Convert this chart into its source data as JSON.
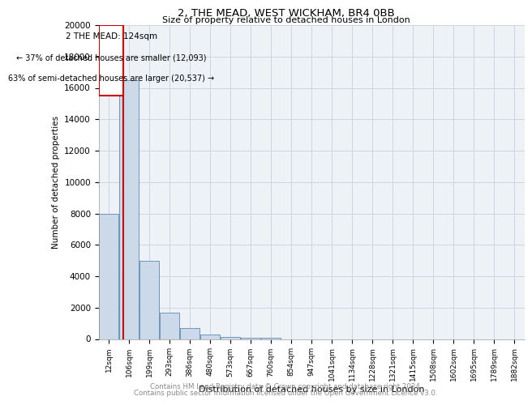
{
  "title1": "2, THE MEAD, WEST WICKHAM, BR4 0BB",
  "title2": "Size of property relative to detached houses in London",
  "xlabel": "Distribution of detached houses by size in London",
  "ylabel": "Number of detached properties",
  "categories": [
    "12sqm",
    "106sqm",
    "199sqm",
    "293sqm",
    "386sqm",
    "480sqm",
    "573sqm",
    "667sqm",
    "760sqm",
    "854sqm",
    "947sqm",
    "1041sqm",
    "1134sqm",
    "1228sqm",
    "1321sqm",
    "1415sqm",
    "1508sqm",
    "1602sqm",
    "1695sqm",
    "1789sqm",
    "1882sqm"
  ],
  "bar_heights": [
    8000,
    16500,
    5000,
    1700,
    700,
    300,
    150,
    100,
    100,
    0,
    0,
    0,
    0,
    0,
    0,
    0,
    0,
    0,
    0,
    0,
    0
  ],
  "bar_color": "#ccd9e8",
  "bar_edge_color": "#5a8ab5",
  "annotation_text1": "2 THE MEAD: 124sqm",
  "annotation_text2": "← 37% of detached houses are smaller (12,093)",
  "annotation_text3": "63% of semi-detached houses are larger (20,537) →",
  "red_line_color": "#cc0000",
  "annotation_box_color": "#cc0000",
  "grid_color": "#cdd5de",
  "background_color": "#eef2f7",
  "ylim": [
    0,
    20000
  ],
  "yticks": [
    0,
    2000,
    4000,
    6000,
    8000,
    10000,
    12000,
    14000,
    16000,
    18000,
    20000
  ],
  "footer1": "Contains HM Land Registry data © Crown copyright and database right 2024.",
  "footer2": "Contains public sector information licensed under the Open Government Licence v3.0."
}
